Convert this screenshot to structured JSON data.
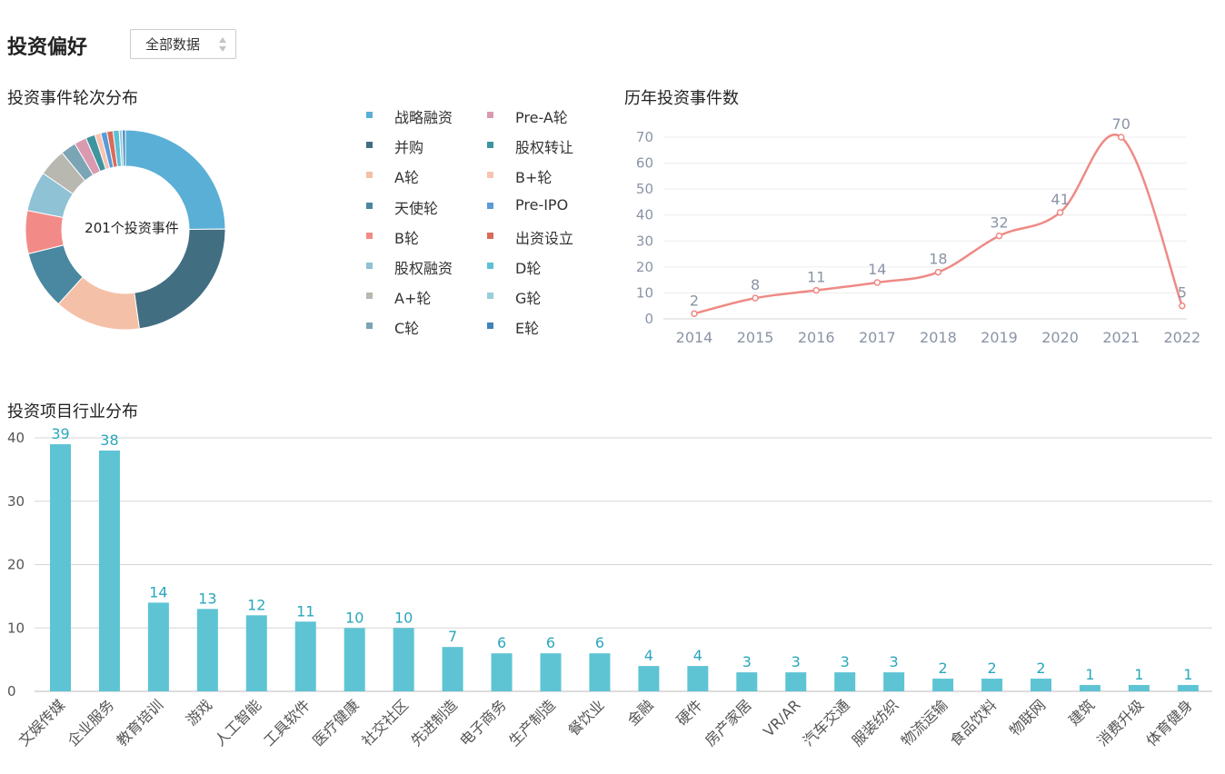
{
  "header": {
    "title": "投资偏好",
    "scope_select": {
      "value": "全部数据",
      "icon": "sort-arrows-icon"
    }
  },
  "sections": {
    "rounds": "投资事件轮次分布",
    "yearly": "历年投资事件数",
    "industry": "投资项目行业分布"
  },
  "chart_data": [
    {
      "type": "pie",
      "variant": "donut",
      "center_label": "201个投资事件",
      "labels": [
        "战略融资",
        "并购",
        "A轮",
        "天使轮",
        "B轮",
        "股权融资",
        "A+轮",
        "C轮",
        "Pre-A轮",
        "股权转让",
        "B+轮",
        "Pre-IPO",
        "出资设立",
        "D轮",
        "G轮",
        "E轮"
      ],
      "values": [
        50,
        46,
        28,
        19,
        14,
        13,
        9,
        5,
        4,
        3,
        2,
        2,
        2,
        2,
        1,
        1
      ],
      "colors": [
        "#5aafd6",
        "#426e82",
        "#f5c0a8",
        "#4a87a0",
        "#f28b87",
        "#8ec2d4",
        "#b8b8b0",
        "#7ba4b4",
        "#d99ab0",
        "#3e949f",
        "#f7c3b3",
        "#5a9bd6",
        "#d96b5a",
        "#5ec0d6",
        "#95cfdc",
        "#3f84b8"
      ],
      "legend_position": "right"
    },
    {
      "type": "line",
      "title": "历年投资事件数",
      "x": [
        "2014",
        "2015",
        "2016",
        "2017",
        "2018",
        "2019",
        "2020",
        "2021",
        "2022"
      ],
      "values": [
        2,
        8,
        11,
        14,
        18,
        32,
        41,
        70,
        5
      ],
      "ylim": [
        0,
        70
      ],
      "yticks": [
        0,
        10,
        20,
        30,
        40,
        50,
        60,
        70
      ],
      "grid": true,
      "smooth": true,
      "color": "#ee8a86"
    },
    {
      "type": "bar",
      "title": "投资项目行业分布",
      "categories": [
        "文娱传媒",
        "企业服务",
        "教育培训",
        "游戏",
        "人工智能",
        "工具软件",
        "医疗健康",
        "社交社区",
        "先进制造",
        "电子商务",
        "生产制造",
        "餐饮业",
        "金融",
        "硬件",
        "房产家居",
        "VR/AR",
        "汽车交通",
        "服装纺织",
        "物流运输",
        "食品饮料",
        "物联网",
        "建筑",
        "消费升级",
        "体育健身"
      ],
      "values": [
        39,
        38,
        14,
        13,
        12,
        11,
        10,
        10,
        7,
        6,
        6,
        6,
        4,
        4,
        3,
        3,
        3,
        3,
        2,
        2,
        2,
        1,
        1,
        1
      ],
      "ylim": [
        0,
        40
      ],
      "yticks": [
        0,
        10,
        20,
        30,
        40
      ],
      "grid": true,
      "color": "#5ec4d4",
      "label_color": "#2aa7bd"
    }
  ]
}
